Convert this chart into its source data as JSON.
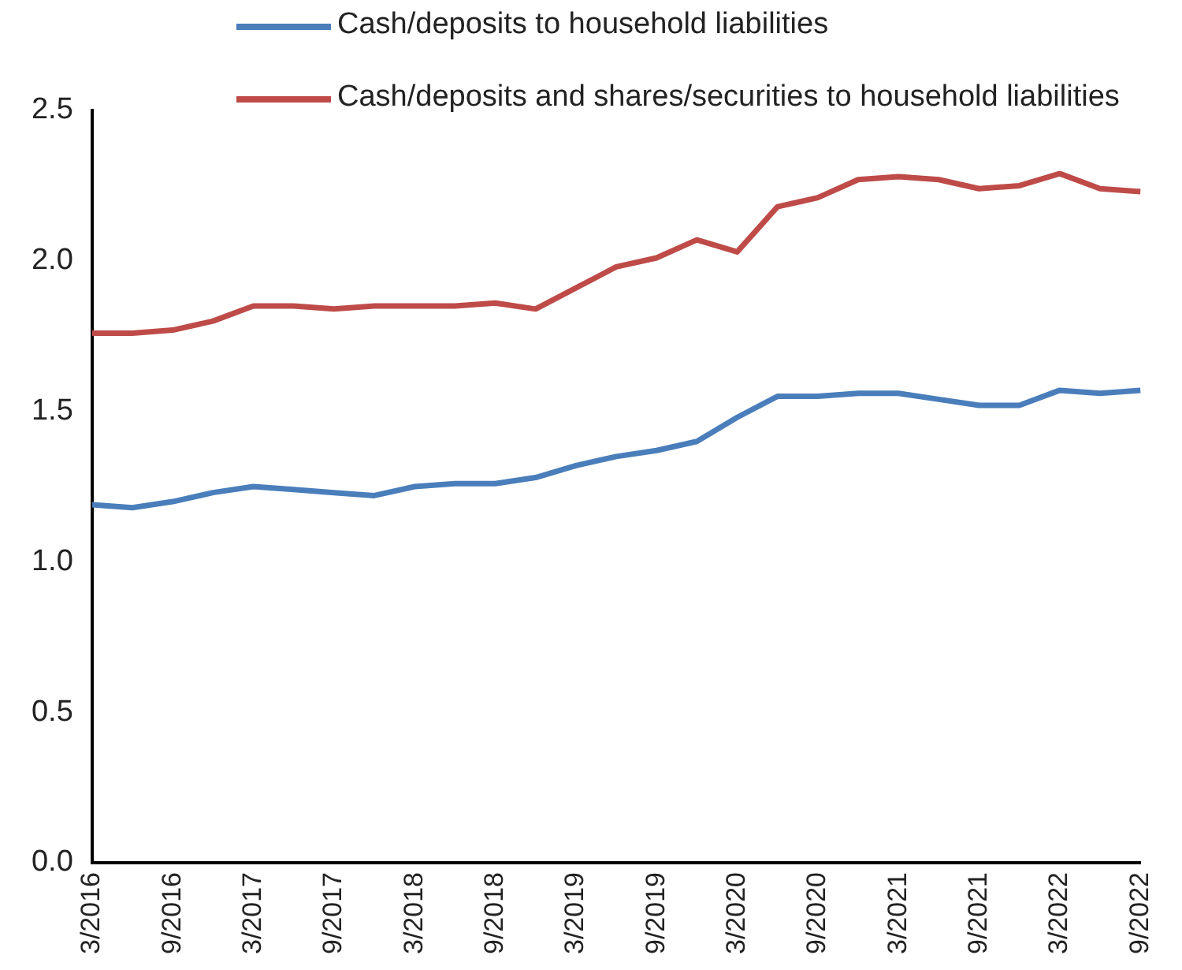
{
  "chart_data": {
    "type": "line",
    "categories": [
      "3/2016",
      null,
      "9/2016",
      null,
      "3/2017",
      null,
      "9/2017",
      null,
      "3/2018",
      null,
      "9/2018",
      null,
      "3/2019",
      null,
      "9/2019",
      null,
      "3/2020",
      null,
      "9/2020",
      null,
      "3/2021",
      null,
      "9/2021",
      null,
      "3/2022",
      null,
      "9/2022"
    ],
    "series": [
      {
        "name": "Cash/deposits to household liabilities",
        "color": "#4a7ebb",
        "values": [
          1.19,
          1.18,
          1.2,
          1.23,
          1.25,
          1.24,
          1.23,
          1.22,
          1.25,
          1.26,
          1.26,
          1.28,
          1.32,
          1.35,
          1.37,
          1.4,
          1.48,
          1.55,
          1.55,
          1.56,
          1.56,
          1.54,
          1.52,
          1.52,
          1.57,
          1.56,
          1.57
        ]
      },
      {
        "name": "Cash/deposits and shares/securities to household liabilities",
        "color": "#be4b48",
        "values": [
          1.76,
          1.76,
          1.77,
          1.8,
          1.85,
          1.85,
          1.84,
          1.85,
          1.85,
          1.85,
          1.86,
          1.84,
          1.91,
          1.98,
          2.01,
          2.07,
          2.03,
          2.18,
          2.21,
          2.27,
          2.28,
          2.27,
          2.24,
          2.25,
          2.29,
          2.24,
          2.23
        ]
      }
    ],
    "ylim": [
      0,
      2.5
    ],
    "yticks": [
      {
        "value": 0,
        "label": "0.0"
      },
      {
        "value": 0.5,
        "label": "0.5"
      },
      {
        "value": 1,
        "label": "1.0"
      },
      {
        "value": 1.5,
        "label": "1.5"
      },
      {
        "value": 2,
        "label": "2.0"
      },
      {
        "value": 2.5,
        "label": "2.5"
      }
    ],
    "grid": false,
    "legend": "top right",
    "marker": "none",
    "line_style": "solid"
  }
}
